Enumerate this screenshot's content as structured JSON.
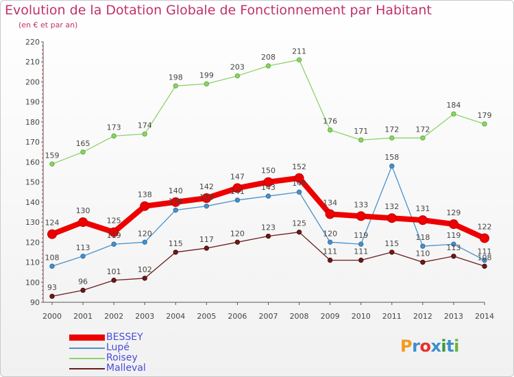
{
  "header": {
    "title": "Evolution de la Dotation Globale de Fonctionnement par Habitant",
    "subtitle": "(en € et par an)"
  },
  "brand": {
    "text": "Proxiti",
    "colors": [
      "#f39b1f",
      "#3c8fcf",
      "#e8302a",
      "#3c8fcf",
      "#3a9b3c",
      "#3c8fcf",
      "#6cb33f"
    ]
  },
  "chart_data": {
    "type": "line",
    "title": "Evolution de la Dotation Globale de Fonctionnement par Habitant",
    "subtitle": "(en € et par an)",
    "x": [
      "2000",
      "2001",
      "2002",
      "2003",
      "2004",
      "2005",
      "2006",
      "2007",
      "2008",
      "2009",
      "2010",
      "2011",
      "2012",
      "2013",
      "2014"
    ],
    "ylim": [
      90,
      220
    ],
    "yticks": [
      90,
      100,
      110,
      120,
      130,
      140,
      150,
      160,
      170,
      180,
      190,
      200,
      210,
      220
    ],
    "grid": false,
    "legend_position": "bottom-left",
    "series": [
      {
        "name": "BESSEY",
        "color": "#ee0000",
        "values": [
          124,
          130,
          125,
          138,
          140,
          142,
          147,
          150,
          152,
          134,
          133,
          132,
          131,
          129,
          122
        ]
      },
      {
        "name": "Lupé",
        "color": "#4a90c8",
        "values": [
          108,
          113,
          119,
          120,
          136,
          138,
          141,
          143,
          145,
          120,
          119,
          158,
          118,
          119,
          111
        ]
      },
      {
        "name": "Roisey",
        "color": "#8fd16a",
        "values": [
          159,
          165,
          173,
          174,
          198,
          199,
          203,
          208,
          211,
          176,
          171,
          172,
          172,
          184,
          179
        ]
      },
      {
        "name": "Malleval",
        "color": "#6b1a1a",
        "values": [
          93,
          96,
          101,
          102,
          115,
          117,
          120,
          123,
          125,
          111,
          111,
          115,
          110,
          113,
          108
        ]
      }
    ]
  }
}
